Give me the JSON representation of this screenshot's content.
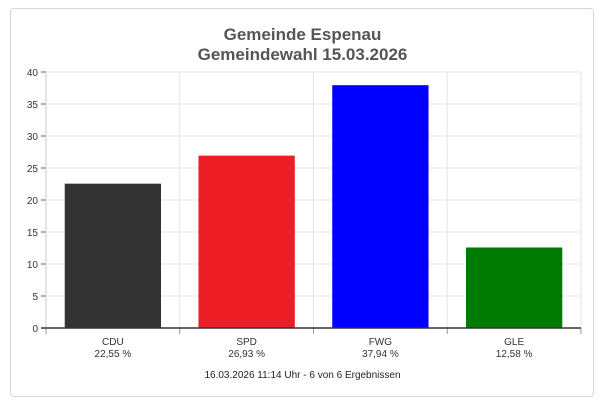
{
  "chart_data": {
    "type": "bar",
    "title": "Gemeinde Espenau",
    "subtitle": "Gemeindewahl 15.03.2026",
    "categories": [
      "CDU",
      "SPD",
      "FWG",
      "GLE"
    ],
    "values": [
      22.55,
      26.93,
      37.94,
      12.58
    ],
    "value_labels": [
      "22,55 %",
      "26,93 %",
      "37,94 %",
      "12,58 %"
    ],
    "colors": [
      "#333333",
      "#ee1c25",
      "#0000ff",
      "#007a00"
    ],
    "ylim": [
      0,
      40
    ],
    "yticks": [
      0,
      5,
      10,
      15,
      20,
      25,
      30,
      35,
      40
    ],
    "xlabel": "",
    "ylabel": "",
    "grid": true,
    "footer": "16.03.2026 11:14 Uhr - 6 von 6 Ergebnissen"
  }
}
